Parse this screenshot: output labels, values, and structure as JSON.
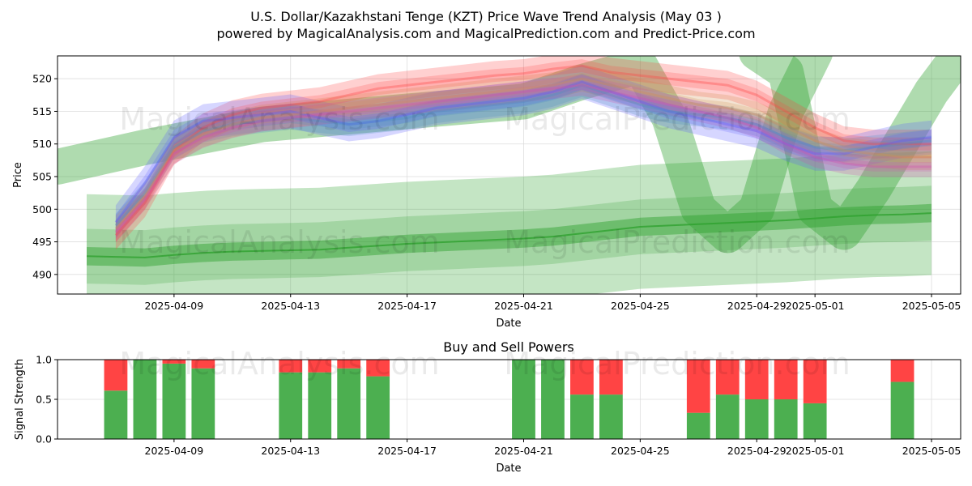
{
  "title_line1": "U.S. Dollar/Kazakhstani Tenge (KZT) Price Wave Trend Analysis (May 03 )",
  "title_line2": "powered by MagicalAnalysis.com and MagicalPrediction.com and Predict-Price.com",
  "watermarks": [
    "MagicalAnalysis.com",
    "MagicalPrediction.com"
  ],
  "colors": {
    "green": "#2ca02c",
    "green_bar": "#4caf50",
    "red": "#ff4444",
    "blue": "#5a5aff",
    "steel": "#4a8fc0",
    "orange": "#d09050",
    "magenta": "#d050b0",
    "grid": "#dddddd"
  },
  "chart_data": [
    {
      "type": "line",
      "title": "",
      "xlabel": "Date",
      "ylabel": "Price",
      "xlim": [
        "2025-04-05",
        "2025-05-06"
      ],
      "ylim": [
        487,
        523.5
      ],
      "x_ticks": [
        "2025-04-09",
        "2025-04-13",
        "2025-04-17",
        "2025-04-21",
        "2025-04-25",
        "2025-04-29",
        "2025-05-01",
        "2025-05-05"
      ],
      "y_ticks": [
        490,
        495,
        500,
        505,
        510,
        515,
        520
      ],
      "grid": true,
      "x": [
        "2025-04-06",
        "2025-04-07",
        "2025-04-08",
        "2025-04-09",
        "2025-04-10",
        "2025-04-11",
        "2025-04-12",
        "2025-04-13",
        "2025-04-14",
        "2025-04-15",
        "2025-04-16",
        "2025-04-17",
        "2025-04-18",
        "2025-04-19",
        "2025-04-20",
        "2025-04-21",
        "2025-04-22",
        "2025-04-23",
        "2025-04-24",
        "2025-04-25",
        "2025-04-26",
        "2025-04-27",
        "2025-04-28",
        "2025-04-29",
        "2025-04-30",
        "2025-05-01",
        "2025-05-02",
        "2025-05-03",
        "2025-05-04",
        "2025-05-05"
      ],
      "series": [
        {
          "color": "#ff4444",
          "values": [
            null,
            496.0,
            501.0,
            509.0,
            512.5,
            514.5,
            515.5,
            516.0,
            516.5,
            517.5,
            518.5,
            519.0,
            519.5,
            520.0,
            520.5,
            520.8,
            521.5,
            522.0,
            521.0,
            520.5,
            520.0,
            519.5,
            519.0,
            517.5,
            515.0,
            512.5,
            510.5,
            510.0,
            510.0,
            510.0
          ]
        },
        {
          "color": "#5a5aff",
          "values": [
            null,
            498.0,
            504.0,
            511.0,
            513.5,
            514.0,
            514.5,
            515.0,
            514.0,
            513.0,
            513.5,
            514.5,
            515.5,
            516.0,
            516.5,
            517.0,
            518.0,
            519.5,
            518.0,
            516.5,
            515.0,
            514.0,
            513.0,
            512.0,
            510.0,
            508.5,
            508.5,
            509.5,
            510.5,
            511.0
          ]
        },
        {
          "color": "#4a8fc0",
          "values": [
            null,
            497.5,
            502.5,
            509.5,
            512.0,
            513.0,
            513.5,
            514.0,
            513.5,
            513.0,
            513.5,
            514.0,
            515.0,
            515.5,
            516.0,
            516.5,
            517.5,
            519.0,
            517.5,
            516.0,
            515.0,
            514.5,
            514.0,
            513.0,
            511.0,
            509.5,
            509.0,
            509.5,
            510.0,
            510.5
          ]
        },
        {
          "color": "#d09050",
          "values": [
            null,
            497.0,
            502.0,
            509.0,
            511.5,
            513.0,
            514.0,
            514.5,
            515.0,
            515.5,
            516.0,
            516.5,
            517.0,
            517.5,
            518.0,
            518.5,
            519.0,
            520.0,
            519.0,
            518.0,
            517.0,
            516.0,
            515.5,
            514.5,
            512.5,
            510.5,
            509.0,
            508.5,
            508.0,
            508.0
          ]
        },
        {
          "color": "#d050b0",
          "values": [
            null,
            496.5,
            501.5,
            508.5,
            511.0,
            512.5,
            513.5,
            514.0,
            514.5,
            515.0,
            515.5,
            516.0,
            516.5,
            517.0,
            517.5,
            518.0,
            518.5,
            519.0,
            518.0,
            517.0,
            516.0,
            515.0,
            514.0,
            512.5,
            510.0,
            508.0,
            507.0,
            506.5,
            506.5,
            506.5
          ]
        },
        {
          "color": "#2ca02c",
          "values": [
            492.8,
            492.7,
            492.6,
            493.0,
            493.3,
            493.5,
            493.6,
            493.7,
            493.8,
            494.1,
            494.4,
            494.7,
            494.9,
            495.1,
            495.3,
            495.5,
            495.8,
            496.3,
            496.8,
            497.3,
            497.5,
            497.7,
            497.9,
            498.1,
            498.3,
            498.6,
            498.9,
            499.1,
            499.2,
            499.4
          ]
        }
      ]
    },
    {
      "type": "bar",
      "title": "Buy and Sell Powers",
      "xlabel": "Date",
      "ylabel": "Signal Strength",
      "xlim": [
        "2025-04-05",
        "2025-05-06"
      ],
      "ylim": [
        0,
        1.0
      ],
      "x_ticks": [
        "2025-04-09",
        "2025-04-13",
        "2025-04-17",
        "2025-04-21",
        "2025-04-25",
        "2025-04-29",
        "2025-05-01",
        "2025-05-05"
      ],
      "y_ticks": [
        0.0,
        0.5,
        1.0
      ],
      "grid": true,
      "categories": [
        "2025-04-07",
        "2025-04-08",
        "2025-04-09",
        "2025-04-10",
        "2025-04-13",
        "2025-04-14",
        "2025-04-15",
        "2025-04-16",
        "2025-04-21",
        "2025-04-22",
        "2025-04-23",
        "2025-04-24",
        "2025-04-27",
        "2025-04-28",
        "2025-04-29",
        "2025-04-30",
        "2025-05-01",
        "2025-05-04"
      ],
      "series": [
        {
          "color": "#4caf50",
          "values": [
            0.61,
            1.0,
            0.95,
            0.89,
            0.84,
            0.84,
            0.89,
            0.79,
            1.0,
            1.0,
            0.56,
            0.56,
            0.33,
            0.56,
            0.5,
            0.5,
            0.45,
            0.72
          ]
        },
        {
          "color": "#ff4444",
          "values": [
            0.39,
            0.0,
            0.05,
            0.11,
            0.16,
            0.16,
            0.11,
            0.21,
            0.0,
            0.0,
            0.44,
            0.44,
            0.67,
            0.44,
            0.5,
            0.5,
            0.55,
            0.28
          ]
        }
      ]
    }
  ]
}
